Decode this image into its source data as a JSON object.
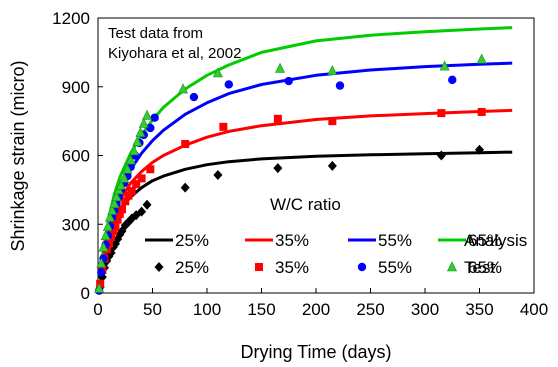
{
  "chart_data": {
    "type": "line",
    "xlabel": "Drying Time (days)",
    "ylabel": "Shrinkage strain (micro)",
    "xlim": [
      0,
      400
    ],
    "ylim": [
      0,
      1200
    ],
    "x_ticks": [
      0,
      50,
      100,
      150,
      200,
      250,
      300,
      350,
      400
    ],
    "y_ticks": [
      0,
      300,
      600,
      900,
      1200
    ],
    "grid": false,
    "annotations": {
      "source_line1": "Test data from",
      "source_line2": "Kiyohara et al, 2002",
      "legend_title": "W/C ratio",
      "analysis_label": "Analysis",
      "test_label": "Test"
    },
    "analysis_series": [
      {
        "name": "25%",
        "color": "#000000",
        "x": [
          0,
          2,
          5,
          10,
          15,
          20,
          30,
          40,
          50,
          60,
          80,
          100,
          120,
          150,
          200,
          250,
          300,
          350,
          380
        ],
        "y": [
          0,
          65,
          150,
          255,
          320,
          365,
          420,
          460,
          490,
          510,
          540,
          560,
          573,
          585,
          597,
          603,
          608,
          612,
          615
        ]
      },
      {
        "name": "35%",
        "color": "#ff0000",
        "x": [
          0,
          2,
          5,
          10,
          15,
          20,
          30,
          40,
          50,
          60,
          80,
          100,
          120,
          150,
          200,
          250,
          300,
          350,
          380
        ],
        "y": [
          0,
          70,
          160,
          275,
          350,
          405,
          480,
          530,
          570,
          600,
          645,
          680,
          705,
          730,
          757,
          773,
          783,
          792,
          797
        ]
      },
      {
        "name": "55%",
        "color": "#0000ff",
        "x": [
          0,
          2,
          5,
          10,
          15,
          20,
          30,
          40,
          50,
          60,
          80,
          100,
          120,
          150,
          200,
          250,
          300,
          350,
          380
        ],
        "y": [
          0,
          78,
          175,
          300,
          385,
          450,
          540,
          610,
          665,
          710,
          780,
          830,
          870,
          910,
          950,
          973,
          988,
          998,
          1003
        ]
      },
      {
        "name": "65%",
        "color": "#00cc00",
        "x": [
          0,
          2,
          5,
          10,
          15,
          20,
          30,
          40,
          50,
          60,
          80,
          100,
          120,
          150,
          200,
          250,
          300,
          350,
          380
        ],
        "y": [
          0,
          85,
          190,
          330,
          430,
          505,
          610,
          690,
          755,
          810,
          890,
          950,
          995,
          1050,
          1100,
          1125,
          1140,
          1152,
          1158
        ]
      }
    ],
    "test_series": [
      {
        "name": "25%",
        "color": "#000000",
        "marker": "diamond",
        "x": [
          2,
          4,
          6,
          8,
          10,
          12,
          14,
          16,
          18,
          20,
          22,
          25,
          28,
          31,
          35,
          40,
          45,
          80,
          110,
          165,
          215,
          315,
          350
        ],
        "y": [
          25,
          70,
          110,
          140,
          160,
          175,
          200,
          215,
          235,
          255,
          270,
          295,
          310,
          325,
          340,
          355,
          385,
          460,
          515,
          545,
          555,
          600,
          625
        ]
      },
      {
        "name": "35%",
        "color": "#ff0000",
        "marker": "square",
        "x": [
          2,
          4,
          6,
          8,
          10,
          12,
          14,
          16,
          18,
          20,
          22,
          25,
          28,
          31,
          35,
          40,
          48,
          80,
          115,
          165,
          215,
          315,
          352
        ],
        "y": [
          40,
          100,
          150,
          190,
          215,
          245,
          270,
          290,
          320,
          345,
          365,
          400,
          425,
          445,
          475,
          500,
          540,
          650,
          725,
          760,
          750,
          785,
          790
        ]
      },
      {
        "name": "55%",
        "color": "#0000ff",
        "marker": "circle",
        "x": [
          1,
          3,
          5,
          7,
          9,
          11,
          13,
          15,
          17,
          19,
          21,
          24,
          27,
          30,
          34,
          38,
          42,
          48,
          52,
          88,
          120,
          175,
          222,
          325
        ],
        "y": [
          10,
          90,
          150,
          210,
          250,
          290,
          330,
          360,
          390,
          420,
          450,
          480,
          510,
          550,
          600,
          655,
          690,
          720,
          765,
          855,
          910,
          925,
          905,
          930
        ]
      },
      {
        "name": "65%",
        "color": "#33cc33",
        "marker": "triangle",
        "x": [
          1,
          3,
          5,
          7,
          9,
          11,
          13,
          15,
          17,
          19,
          21,
          24,
          27,
          30,
          33,
          36,
          39,
          42,
          45,
          78,
          110,
          167,
          215,
          318,
          352
        ],
        "y": [
          20,
          130,
          200,
          250,
          290,
          330,
          360,
          390,
          420,
          450,
          470,
          500,
          540,
          580,
          620,
          660,
          700,
          740,
          775,
          890,
          960,
          980,
          970,
          990,
          1020
        ]
      }
    ]
  }
}
